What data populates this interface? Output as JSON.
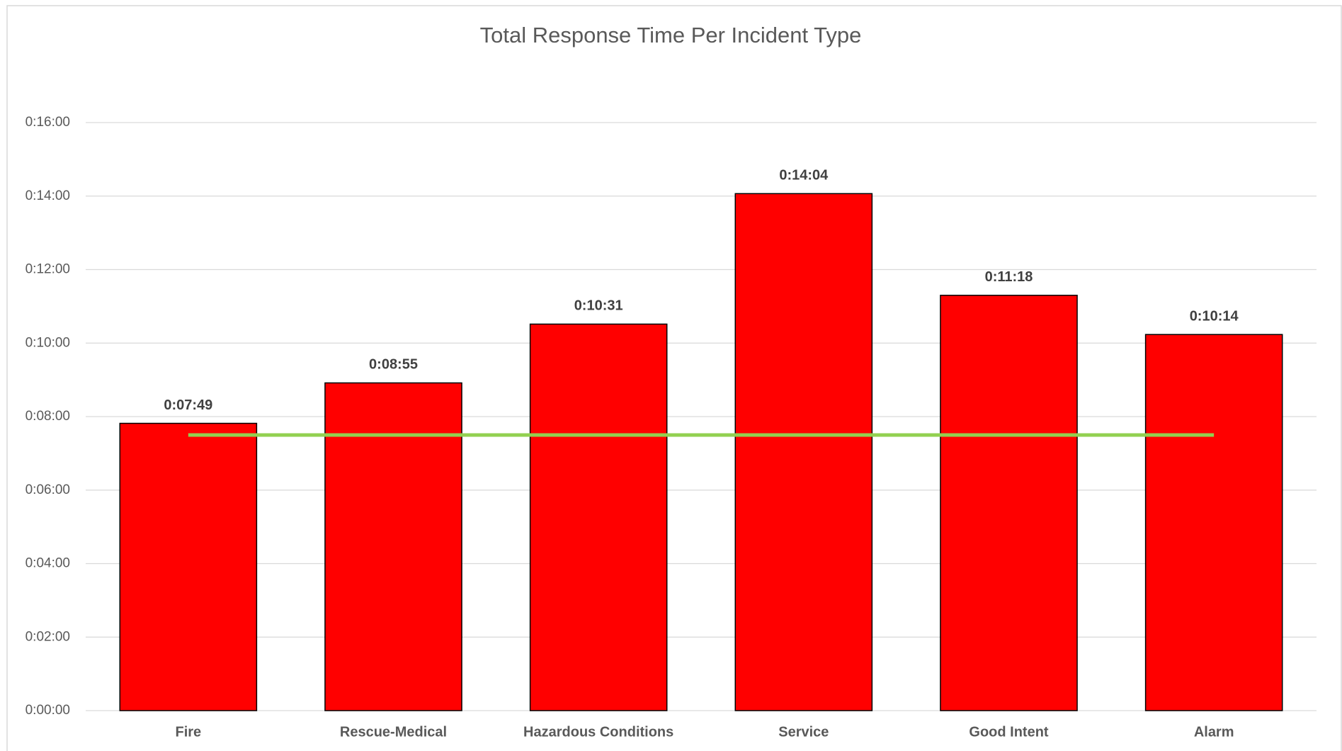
{
  "chart_data": {
    "type": "bar",
    "title": "Total Response Time Per Incident Type",
    "categories": [
      "Fire",
      "Rescue-Medical",
      "Hazardous Conditions",
      "Service",
      "Good Intent",
      "Alarm"
    ],
    "values": [
      469,
      535,
      631,
      844,
      678,
      614
    ],
    "value_labels": [
      "0:07:49",
      "0:08:55",
      "0:10:31",
      "0:14:04",
      "0:11:18",
      "0:10:14"
    ],
    "color": "#ff0000",
    "reference_line": {
      "value": 450,
      "color": "#92d050"
    },
    "ylim": [
      0,
      960
    ],
    "yticks": [
      {
        "value": 0,
        "label": "0:00:00"
      },
      {
        "value": 120,
        "label": "0:02:00"
      },
      {
        "value": 240,
        "label": "0:04:00"
      },
      {
        "value": 360,
        "label": "0:06:00"
      },
      {
        "value": 480,
        "label": "0:08:00"
      },
      {
        "value": 600,
        "label": "0:10:00"
      },
      {
        "value": 720,
        "label": "0:12:00"
      },
      {
        "value": 840,
        "label": "0:14:00"
      },
      {
        "value": 960,
        "label": "0:16:00"
      }
    ],
    "grid": true
  }
}
